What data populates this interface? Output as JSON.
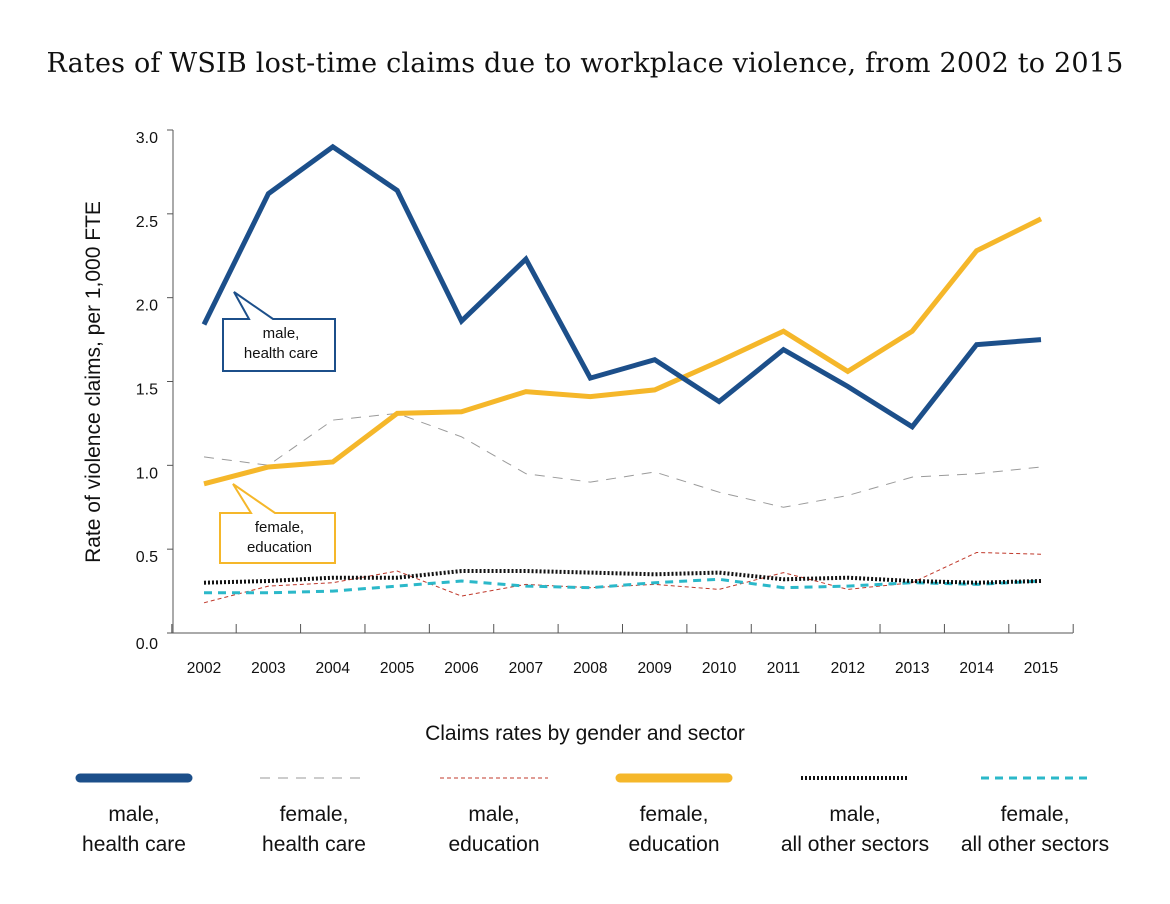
{
  "chart_data": {
    "type": "line",
    "title": "Rates of WSIB lost-time claims due to workplace violence, from 2002 to 2015",
    "xlabel": "",
    "ylabel": "Rate of violence claims, per 1,000 FTE",
    "x": [
      "2002",
      "2003",
      "2004",
      "2005",
      "2006",
      "2007",
      "2008",
      "2009",
      "2010",
      "2011",
      "2012",
      "2013",
      "2014",
      "2015"
    ],
    "ylim": [
      0,
      3.0
    ],
    "yticks": [
      "0.0",
      "0.5",
      "1.0",
      "1.5",
      "2.0",
      "2.5",
      "3.0"
    ],
    "grid": false,
    "legend_title": "Claims rates by gender and sector",
    "legend_position": "bottom",
    "series": [
      {
        "name": "male,\nhealth care",
        "style": "thick-solid",
        "color": "#1c4f8a",
        "values": [
          1.84,
          2.62,
          2.9,
          2.64,
          1.86,
          2.23,
          1.52,
          1.63,
          1.38,
          1.69,
          1.47,
          1.23,
          1.72,
          1.75
        ]
      },
      {
        "name": "female,\nhealth care",
        "style": "thin-long-dash",
        "color": "#9a9a9a",
        "values": [
          1.05,
          1.0,
          1.27,
          1.31,
          1.17,
          0.95,
          0.9,
          0.96,
          0.84,
          0.75,
          0.82,
          0.93,
          0.95,
          0.99
        ]
      },
      {
        "name": "male,\neducation",
        "style": "thin-short-dash",
        "color": "#c0392b",
        "values": [
          0.18,
          0.28,
          0.3,
          0.37,
          0.22,
          0.29,
          0.27,
          0.29,
          0.26,
          0.36,
          0.26,
          0.3,
          0.48,
          0.47
        ]
      },
      {
        "name": "female,\neducation",
        "style": "thick-solid",
        "color": "#f5b72a",
        "values": [
          0.89,
          0.99,
          1.02,
          1.31,
          1.32,
          1.44,
          1.41,
          1.45,
          1.62,
          1.8,
          1.56,
          1.8,
          2.28,
          2.47
        ]
      },
      {
        "name": "male,\nall other sectors",
        "style": "dotted",
        "color": "#111111",
        "values": [
          0.3,
          0.31,
          0.33,
          0.33,
          0.37,
          0.37,
          0.36,
          0.35,
          0.36,
          0.32,
          0.33,
          0.31,
          0.3,
          0.31
        ]
      },
      {
        "name": "female,\nall other sectors",
        "style": "dashed",
        "color": "#2bb8c9",
        "values": [
          0.24,
          0.24,
          0.25,
          0.28,
          0.31,
          0.28,
          0.27,
          0.3,
          0.32,
          0.27,
          0.28,
          0.3,
          0.29,
          0.31
        ]
      }
    ],
    "annotations": [
      {
        "text": "male,\nhealth care",
        "series": 0,
        "color": "#1c4f8a"
      },
      {
        "text": "female,\neducation",
        "series": 3,
        "color": "#f5b72a"
      }
    ]
  }
}
